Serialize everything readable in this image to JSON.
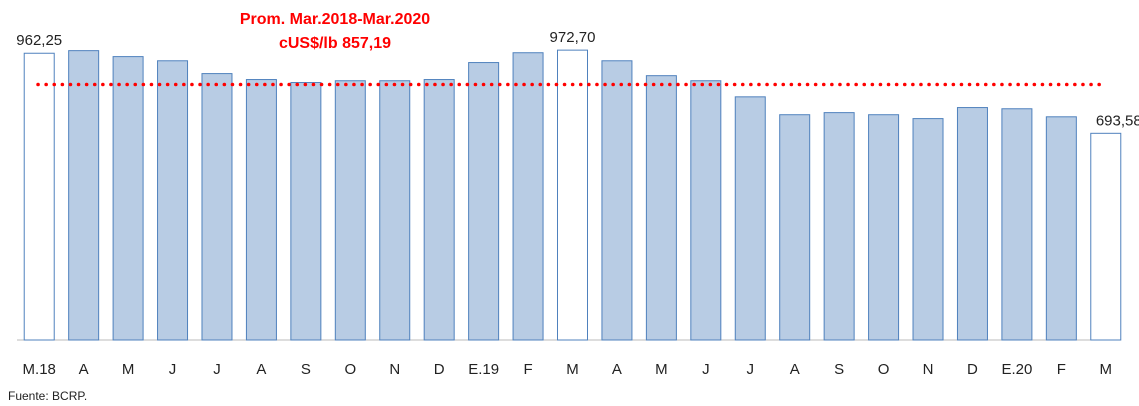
{
  "chart_data": {
    "type": "bar",
    "categories": [
      "M.18",
      "A",
      "M",
      "J",
      "J",
      "A",
      "S",
      "O",
      "N",
      "D",
      "E.19",
      "F",
      "M",
      "A",
      "M",
      "J",
      "J",
      "A",
      "S",
      "O",
      "N",
      "D",
      "E.20",
      "F",
      "M"
    ],
    "values": [
      962.25,
      971,
      951,
      937,
      894,
      874,
      864,
      870,
      870,
      874,
      931,
      964,
      972.7,
      937,
      887,
      870,
      816,
      756,
      763,
      756,
      743,
      780,
      776,
      749,
      693.58
    ],
    "value_labels": [
      "962,25",
      null,
      null,
      null,
      null,
      null,
      null,
      null,
      null,
      null,
      null,
      null,
      "972,70",
      null,
      null,
      null,
      null,
      null,
      null,
      null,
      null,
      null,
      null,
      null,
      "693,58"
    ],
    "colors": [
      "#ffffff",
      "#b8cce4",
      "#b8cce4",
      "#b8cce4",
      "#b8cce4",
      "#b8cce4",
      "#b8cce4",
      "#b8cce4",
      "#b8cce4",
      "#b8cce4",
      "#b8cce4",
      "#b8cce4",
      "#ffffff",
      "#b8cce4",
      "#b8cce4",
      "#b8cce4",
      "#b8cce4",
      "#b8cce4",
      "#b8cce4",
      "#b8cce4",
      "#b8cce4",
      "#b8cce4",
      "#b8cce4",
      "#b8cce4",
      "#ffffff"
    ],
    "edge_color": "#4f81bd",
    "ylim": [
      0,
      1000
    ],
    "average_line": {
      "value": 857.19,
      "color": "#ff0000",
      "label_lines": [
        "Prom. Mar.2018-Mar.2020",
        "cUS$/lb 857,19"
      ]
    },
    "note": "Fuente: BCRP."
  }
}
